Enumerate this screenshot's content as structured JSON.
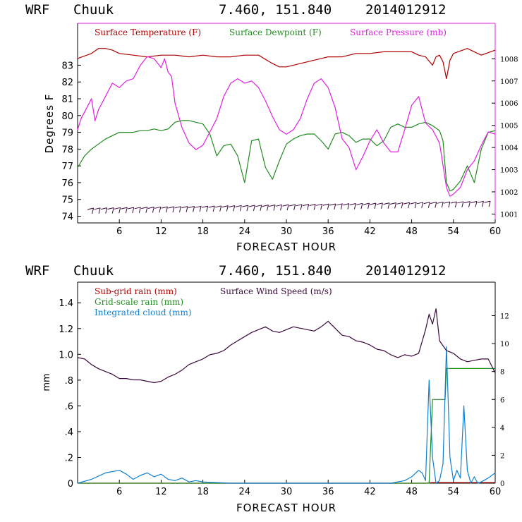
{
  "colors": {
    "temperature": "#b00000",
    "dewpoint": "#228b22",
    "pressure": "#e020e0",
    "subgrid_rain": "#b00000",
    "gridscale_rain": "#228b22",
    "cloud": "#1080d0",
    "wind": "#3a0a3a"
  },
  "chart_data": [
    {
      "type": "line",
      "header": {
        "model": "WRF",
        "station": "Chuuk",
        "coords": "7.460, 151.840",
        "init": "2014012912"
      },
      "xlabel": "FORECAST HOUR",
      "ylabel": "Degrees F",
      "xlim": [
        0,
        60
      ],
      "ylim": [
        73.6,
        85.5
      ],
      "y2lim": [
        1000.6,
        1009.6
      ],
      "x_ticks": [
        "6",
        "12",
        "18",
        "24",
        "30",
        "36",
        "42",
        "48",
        "54",
        "60"
      ],
      "y_ticks": [
        "74",
        "75",
        "76",
        "77",
        "78",
        "79",
        "80",
        "81",
        "82",
        "83"
      ],
      "y2_ticks": [
        "1001",
        "1002",
        "1003",
        "1004",
        "1005",
        "1006",
        "1007",
        "1008"
      ],
      "legend": [
        "Surface Temperature (F)",
        "Surface Dewpoint (F)",
        "Surface Pressure (mb)"
      ],
      "series": [
        {
          "name": "Surface Temperature (F)",
          "axis": "left",
          "x": [
            0,
            2,
            3,
            4,
            5,
            6,
            8,
            10,
            12,
            14,
            16,
            18,
            20,
            22,
            24,
            26,
            28,
            29,
            30,
            32,
            34,
            36,
            38,
            40,
            42,
            44,
            46,
            48,
            49,
            50,
            51,
            51.5,
            52,
            52.5,
            53,
            53.5,
            54,
            56,
            58,
            60
          ],
          "values": [
            83.4,
            83.7,
            84.0,
            84.0,
            83.9,
            83.7,
            83.6,
            83.5,
            83.6,
            83.6,
            83.5,
            83.6,
            83.5,
            83.5,
            83.6,
            83.6,
            83.1,
            82.9,
            82.9,
            83.1,
            83.3,
            83.5,
            83.5,
            83.7,
            83.7,
            83.8,
            83.8,
            83.8,
            83.6,
            83.5,
            83.0,
            83.5,
            83.6,
            83.2,
            82.2,
            83.3,
            83.7,
            84.0,
            83.6,
            83.9
          ]
        },
        {
          "name": "Surface Dewpoint (F)",
          "axis": "left",
          "x": [
            0,
            1,
            2,
            3,
            4,
            5,
            6,
            7,
            8,
            9,
            10,
            11,
            12,
            13,
            14,
            15,
            16,
            17,
            18,
            19,
            20,
            21,
            22,
            23,
            24,
            25,
            26,
            27,
            28,
            29,
            30,
            31,
            32,
            33,
            34,
            35,
            36,
            37,
            38,
            39,
            40,
            41,
            42,
            43,
            44,
            45,
            46,
            47,
            48,
            49,
            50,
            51,
            52,
            52.5,
            53,
            53.5,
            54,
            55,
            56,
            57,
            58,
            59,
            60
          ],
          "values": [
            76.9,
            77.6,
            78.0,
            78.3,
            78.6,
            78.8,
            79.0,
            79.0,
            79.0,
            79.1,
            79.1,
            79.2,
            79.1,
            79.2,
            79.6,
            79.7,
            79.7,
            79.6,
            79.5,
            78.9,
            77.6,
            78.2,
            78.3,
            77.6,
            76.0,
            78.5,
            78.6,
            76.9,
            76.2,
            77.3,
            78.3,
            78.6,
            78.8,
            78.9,
            78.9,
            78.5,
            78.0,
            78.9,
            79.0,
            78.8,
            78.4,
            78.6,
            78.6,
            78.2,
            78.5,
            79.3,
            79.5,
            79.3,
            79.3,
            79.5,
            79.6,
            79.4,
            79.1,
            78.5,
            76.0,
            75.5,
            75.6,
            76.1,
            77.0,
            76.0,
            78.0,
            79.0,
            79.1
          ]
        },
        {
          "name": "Surface Pressure (mb)",
          "axis": "right",
          "x": [
            0,
            0.5,
            1,
            1.5,
            2,
            2.5,
            3,
            4,
            5,
            6,
            7,
            8,
            9,
            10,
            11,
            12,
            12.5,
            13,
            13.5,
            14,
            15,
            16,
            17,
            18,
            19,
            20,
            21,
            22,
            23,
            24,
            25,
            26,
            27,
            28,
            29,
            30,
            31,
            32,
            33,
            34,
            35,
            36,
            37,
            38,
            39,
            40,
            41,
            42,
            43,
            44,
            45,
            46,
            47,
            48,
            49,
            50,
            51,
            52,
            53,
            53.5,
            54,
            55,
            56,
            57,
            58,
            59,
            60
          ],
          "values": [
            1004.8,
            1005.3,
            1005.6,
            1005.9,
            1006.2,
            1005.2,
            1005.7,
            1006.3,
            1006.9,
            1006.7,
            1007.0,
            1007.1,
            1007.7,
            1008.1,
            1008.0,
            1007.6,
            1008.0,
            1007.4,
            1007.2,
            1006.0,
            1004.9,
            1004.2,
            1003.9,
            1004.1,
            1004.7,
            1005.3,
            1006.3,
            1006.9,
            1007.1,
            1006.9,
            1007.0,
            1006.7,
            1006.1,
            1005.4,
            1004.8,
            1004.6,
            1004.8,
            1005.3,
            1006.2,
            1006.9,
            1007.1,
            1006.7,
            1005.8,
            1004.4,
            1004.0,
            1003.0,
            1003.6,
            1004.3,
            1004.8,
            1004.2,
            1003.8,
            1003.8,
            1004.8,
            1005.9,
            1006.3,
            1005.1,
            1004.8,
            1004.2,
            1002.2,
            1001.8,
            1001.9,
            1002.2,
            1003.0,
            1003.4,
            1004.1,
            1004.7,
            1004.6
          ]
        }
      ],
      "wind_barbs": {
        "name": "Wind barbs",
        "y_level": 74.4,
        "count": 60
      }
    },
    {
      "type": "line",
      "header": {
        "model": "WRF",
        "station": "Chuuk",
        "coords": "7.460, 151.840",
        "init": "2014012912"
      },
      "xlabel": "FORECAST HOUR",
      "ylabel": "mm",
      "xlim": [
        0,
        60
      ],
      "ylim": [
        0,
        1.56
      ],
      "y2lim": [
        0,
        14.4
      ],
      "x_ticks": [
        "6",
        "12",
        "18",
        "24",
        "30",
        "36",
        "42",
        "48",
        "54",
        "60"
      ],
      "y_ticks": [
        "0",
        "0.2",
        "0.4",
        "0.6",
        "0.8",
        "1.0",
        "1.2",
        "1.4"
      ],
      "y_tick_labels": [
        "0",
        ".2",
        ".4",
        ".6",
        ".8",
        "1.0",
        "1.2",
        "1.4"
      ],
      "y2_ticks": [
        "0",
        "2",
        "4",
        "6",
        "8",
        "10",
        "12"
      ],
      "legend": [
        "Sub-grid rain (mm)",
        "Grid-scale rain (mm)",
        "Integrated cloud (mm)",
        "Surface Wind Speed (m/s)"
      ],
      "series": [
        {
          "name": "Sub-grid rain (mm)",
          "axis": "left",
          "x": [
            0,
            50,
            51,
            53,
            60
          ],
          "values": [
            0,
            0,
            0.005,
            0.005,
            0.005
          ]
        },
        {
          "name": "Grid-scale rain (mm)",
          "axis": "left",
          "x": [
            0,
            50.5,
            51,
            51.5,
            52,
            52.8,
            53,
            60
          ],
          "values": [
            0,
            0,
            0.65,
            0.65,
            0.65,
            0.65,
            0.89,
            0.89
          ]
        },
        {
          "name": "Integrated cloud (mm)",
          "axis": "left",
          "x": [
            0,
            2,
            4,
            6,
            7,
            8,
            9,
            10,
            11,
            12,
            13,
            14,
            15,
            16,
            17,
            18,
            20,
            22,
            24,
            30,
            40,
            45,
            47,
            48,
            49,
            49.5,
            50,
            50.5,
            51,
            51.5,
            52,
            52.5,
            53,
            53.5,
            54,
            54.5,
            55,
            55.5,
            56,
            56.5,
            57,
            57.5,
            58,
            59,
            60
          ],
          "values": [
            0,
            0.03,
            0.08,
            0.1,
            0.07,
            0.03,
            0.06,
            0.08,
            0.05,
            0.07,
            0.03,
            0.02,
            0.04,
            0.01,
            0.02,
            0.01,
            0.005,
            0.0,
            0.0,
            0.0,
            0.0,
            0.0,
            0.02,
            0.05,
            0.1,
            0.08,
            0.02,
            0.8,
            0.2,
            0.0,
            0.02,
            0.15,
            1.06,
            0.2,
            0.02,
            0.1,
            0.04,
            0.6,
            0.1,
            0.0,
            0.05,
            0.0,
            0.01,
            0.04,
            0.08
          ]
        },
        {
          "name": "Surface Wind Speed (m/s)",
          "axis": "right",
          "x": [
            0,
            1,
            2,
            3,
            4,
            5,
            6,
            7,
            8,
            9,
            10,
            11,
            12,
            13,
            14,
            15,
            16,
            17,
            18,
            19,
            20,
            21,
            22,
            23,
            24,
            25,
            26,
            27,
            28,
            29,
            30,
            31,
            32,
            33,
            34,
            35,
            36,
            37,
            38,
            39,
            40,
            41,
            42,
            43,
            44,
            45,
            46,
            47,
            48,
            49,
            50,
            50.5,
            51,
            51.5,
            52,
            53,
            54,
            55,
            56,
            57,
            58,
            59,
            60
          ],
          "values": [
            9.0,
            8.9,
            8.5,
            8.2,
            8.0,
            7.8,
            7.5,
            7.5,
            7.4,
            7.4,
            7.3,
            7.2,
            7.3,
            7.6,
            7.8,
            8.1,
            8.5,
            8.7,
            8.9,
            9.2,
            9.3,
            9.5,
            9.9,
            10.2,
            10.5,
            10.8,
            11.0,
            11.2,
            10.9,
            10.8,
            11.0,
            11.2,
            11.1,
            11.0,
            10.9,
            11.2,
            11.6,
            11.1,
            10.6,
            10.5,
            10.2,
            10.1,
            9.9,
            9.6,
            9.5,
            9.2,
            9.0,
            9.2,
            9.1,
            9.3,
            11.0,
            12.1,
            11.4,
            12.5,
            10.2,
            9.5,
            9.3,
            8.9,
            8.7,
            8.8,
            8.9,
            8.9,
            7.9
          ]
        }
      ]
    }
  ]
}
